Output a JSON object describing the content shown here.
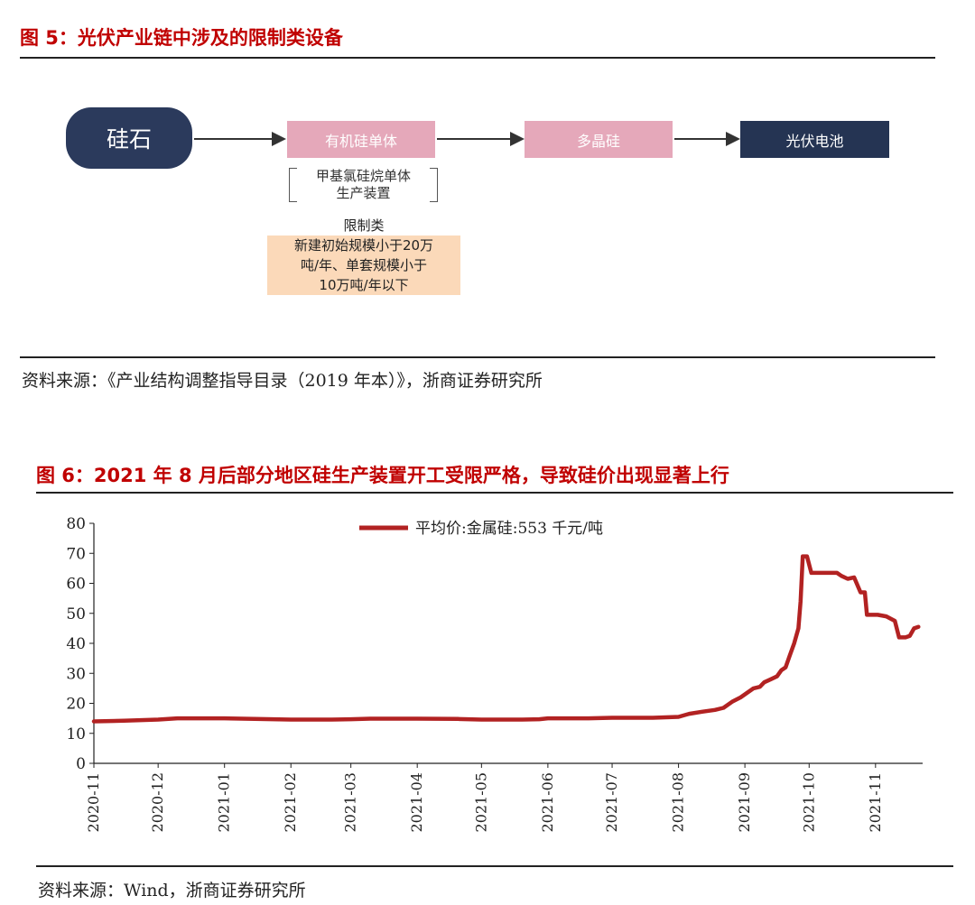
{
  "figure5": {
    "title": "图 5：光伏产业链中涉及的限制类设备",
    "nodes": {
      "stone": "硅石",
      "organic": "有机硅单体",
      "poly": "多晶硅",
      "pv": "光伏电池"
    },
    "bracket_lines": [
      "甲基氯硅烷单体",
      "生产装置"
    ],
    "limit_title": "限制类",
    "limit_lines": [
      "新建初始规模小于20万",
      "吨/年、单套规模小于",
      "10万吨/年以下"
    ],
    "source": "资料来源：《产业结构调整指导目录（2019 年本）》，浙商证券研究所"
  },
  "figure6": {
    "title": "图 6：2021 年 8 月后部分地区硅生产装置开工受限严格，导致硅价出现显著上行",
    "source": "资料来源：Wind，浙商证券研究所"
  },
  "colors": {
    "title_red": "#c00000",
    "series_red": "#b22222",
    "node_dark": "#2b3a5c",
    "node_pink": "#e5a8ba",
    "limit_bg": "#fbd9b9"
  },
  "chart_data": {
    "type": "line",
    "title": "",
    "xlabel": "",
    "ylabel": "",
    "ylim": [
      0,
      80
    ],
    "yticks": [
      0,
      10,
      20,
      30,
      40,
      50,
      60,
      70,
      80
    ],
    "xlim": [
      "2020-11-01",
      "2021-11-23"
    ],
    "xticks": [
      "2020-11",
      "2020-12",
      "2021-01",
      "2021-02",
      "2021-03",
      "2021-04",
      "2021-05",
      "2021-06",
      "2021-07",
      "2021-08",
      "2021-09",
      "2021-10",
      "2021-11"
    ],
    "legend_position": "top-center",
    "grid": false,
    "series": [
      {
        "name": "平均价:金属硅:553 千元/吨",
        "color": "#b22222",
        "points": [
          [
            "2020-11-01",
            14.0
          ],
          [
            "2020-11-15",
            14.2
          ],
          [
            "2020-12-01",
            14.6
          ],
          [
            "2020-12-10",
            15.0
          ],
          [
            "2021-01-01",
            15.0
          ],
          [
            "2021-01-15",
            14.8
          ],
          [
            "2021-02-01",
            14.6
          ],
          [
            "2021-02-20",
            14.6
          ],
          [
            "2021-03-01",
            14.7
          ],
          [
            "2021-03-10",
            14.9
          ],
          [
            "2021-04-01",
            14.9
          ],
          [
            "2021-04-20",
            14.8
          ],
          [
            "2021-05-01",
            14.6
          ],
          [
            "2021-05-20",
            14.6
          ],
          [
            "2021-05-28",
            14.7
          ],
          [
            "2021-06-01",
            15.0
          ],
          [
            "2021-06-20",
            15.0
          ],
          [
            "2021-07-01",
            15.2
          ],
          [
            "2021-07-20",
            15.2
          ],
          [
            "2021-08-01",
            15.5
          ],
          [
            "2021-08-06",
            16.5
          ],
          [
            "2021-08-12",
            17.2
          ],
          [
            "2021-08-18",
            17.8
          ],
          [
            "2021-08-22",
            18.5
          ],
          [
            "2021-08-26",
            20.5
          ],
          [
            "2021-08-30",
            22.0
          ],
          [
            "2021-09-02",
            23.5
          ],
          [
            "2021-09-05",
            25.0
          ],
          [
            "2021-09-08",
            25.5
          ],
          [
            "2021-09-10",
            27.0
          ],
          [
            "2021-09-13",
            28.0
          ],
          [
            "2021-09-16",
            29.0
          ],
          [
            "2021-09-18",
            31.0
          ],
          [
            "2021-09-20",
            32.0
          ],
          [
            "2021-09-22",
            36.0
          ],
          [
            "2021-09-24",
            40.0
          ],
          [
            "2021-09-26",
            45.0
          ],
          [
            "2021-09-27",
            54.0
          ],
          [
            "2021-09-28",
            69.0
          ],
          [
            "2021-09-30",
            69.0
          ],
          [
            "2021-10-02",
            63.5
          ],
          [
            "2021-10-08",
            63.5
          ],
          [
            "2021-10-14",
            63.5
          ],
          [
            "2021-10-16",
            62.5
          ],
          [
            "2021-10-19",
            61.5
          ],
          [
            "2021-10-22",
            62.0
          ],
          [
            "2021-10-25",
            57.0
          ],
          [
            "2021-10-27",
            57.0
          ],
          [
            "2021-10-28",
            49.5
          ],
          [
            "2021-11-02",
            49.5
          ],
          [
            "2021-11-06",
            49.0
          ],
          [
            "2021-11-10",
            47.5
          ],
          [
            "2021-11-12",
            42.0
          ],
          [
            "2021-11-15",
            42.0
          ],
          [
            "2021-11-17",
            42.5
          ],
          [
            "2021-11-19",
            45.0
          ],
          [
            "2021-11-21",
            45.5
          ]
        ]
      }
    ]
  }
}
